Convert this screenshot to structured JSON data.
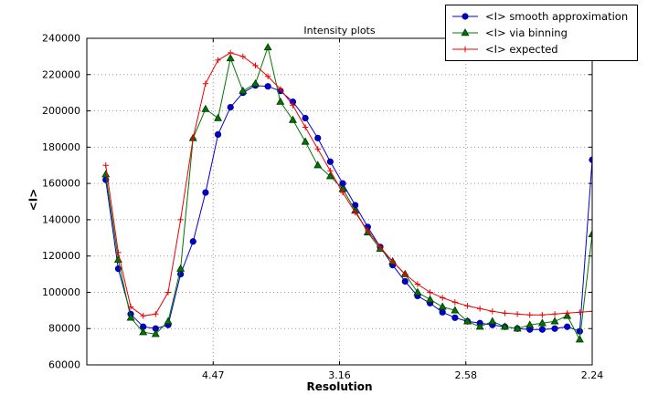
{
  "chart_data": {
    "type": "line",
    "title": "Intensity plots",
    "xlabel": "Resolution",
    "ylabel": "<I>",
    "xlim": [
      0,
      0.2
    ],
    "ylim": [
      60000,
      240000
    ],
    "grid": true,
    "grid_style": "dotted",
    "legend_position": "upper right, outside top of axes",
    "x_axis_note": "axis linear in 1/d^2; tick labels are resolution d values",
    "xticks": [
      {
        "value": 0.05,
        "label": "4.47"
      },
      {
        "value": 0.1,
        "label": "3.16"
      },
      {
        "value": 0.15,
        "label": "2.58"
      },
      {
        "value": 0.2,
        "label": "2.24"
      }
    ],
    "yticks": [
      60000,
      80000,
      100000,
      120000,
      140000,
      160000,
      180000,
      200000,
      220000,
      240000
    ],
    "x": [
      0.0075,
      0.01244,
      0.01737,
      0.02231,
      0.02724,
      0.03218,
      0.03711,
      0.04205,
      0.04699,
      0.05192,
      0.05686,
      0.06179,
      0.06673,
      0.07166,
      0.0766,
      0.08154,
      0.08647,
      0.09141,
      0.09634,
      0.10128,
      0.10621,
      0.11115,
      0.11609,
      0.12102,
      0.12596,
      0.13089,
      0.13583,
      0.14076,
      0.1457,
      0.15064,
      0.15557,
      0.16051,
      0.16544,
      0.17038,
      0.17531,
      0.18025,
      0.18519,
      0.19012,
      0.19506,
      0.2
    ],
    "series": [
      {
        "name": "<I> smooth approximation",
        "color": "#0000cd",
        "edge": "#00008b",
        "marker": "circle",
        "y": [
          162000,
          113000,
          88000,
          81000,
          80000,
          82000,
          110000,
          128000,
          155000,
          187000,
          202000,
          210000,
          214000,
          213500,
          211000,
          205000,
          196000,
          185000,
          172000,
          160000,
          148000,
          136000,
          125000,
          115000,
          106000,
          98000,
          94000,
          89000,
          86000,
          84000,
          83000,
          82000,
          81000,
          80000,
          79500,
          79500,
          80000,
          81000,
          78500,
          173000
        ]
      },
      {
        "name": "<I> via binning",
        "color": "#007700",
        "edge": "#003300",
        "marker": "triangle-up",
        "y": [
          165000,
          118000,
          86000,
          78000,
          77000,
          84000,
          113000,
          185000,
          201000,
          196000,
          229000,
          211000,
          215000,
          235000,
          205000,
          195000,
          183000,
          170000,
          164000,
          157000,
          145000,
          133000,
          124000,
          117000,
          110000,
          100000,
          96000,
          92000,
          90000,
          84000,
          81000,
          84000,
          81000,
          80000,
          82000,
          83000,
          84000,
          87000,
          74000,
          132000
        ]
      },
      {
        "name": "<I> expected",
        "color": "#ee0000",
        "edge": "#ee0000",
        "marker": "plus",
        "y": [
          170000,
          122000,
          92000,
          87000,
          88000,
          100000,
          140000,
          185000,
          215000,
          228000,
          232000,
          230000,
          225000,
          219000,
          212000,
          203000,
          191000,
          179000,
          167000,
          155000,
          144000,
          134000,
          125000,
          117000,
          110000,
          104500,
          100000,
          97000,
          94500,
          92500,
          91000,
          89500,
          88500,
          88000,
          87500,
          87500,
          88000,
          88500,
          89000,
          89500
        ]
      }
    ],
    "colors": {
      "plot_bg": "#ffffff",
      "figure_bg": "#ffffff",
      "grid": "#999999",
      "frame": "#000000"
    }
  }
}
